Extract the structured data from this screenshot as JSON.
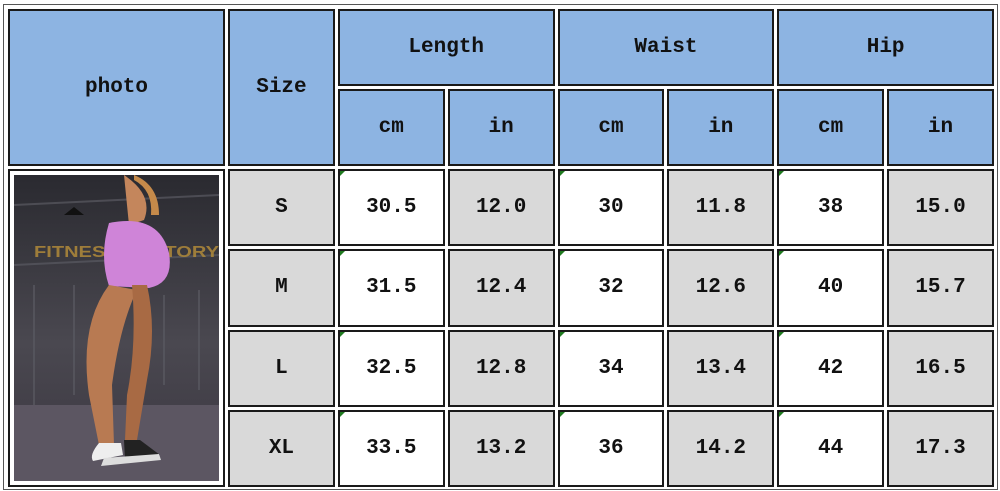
{
  "headers": {
    "photo": "photo",
    "size": "Size",
    "groups": [
      "Length",
      "Waist",
      "Hip"
    ],
    "units": [
      "cm",
      "in",
      "cm",
      "in",
      "cm",
      "in"
    ]
  },
  "rows": [
    {
      "size": "S",
      "values": [
        "30.5",
        "12.0",
        "30",
        "11.8",
        "38",
        "15.0"
      ]
    },
    {
      "size": "M",
      "values": [
        "31.5",
        "12.4",
        "32",
        "12.6",
        "40",
        "15.7"
      ]
    },
    {
      "size": "L",
      "values": [
        "32.5",
        "12.8",
        "34",
        "13.4",
        "42",
        "16.5"
      ]
    },
    {
      "size": "XL",
      "values": [
        "33.5",
        "13.2",
        "36",
        "14.2",
        "44",
        "17.3"
      ]
    }
  ],
  "photo": {
    "sign_text": "FITNESS FACTORY"
  },
  "colors": {
    "header": "#8db4e2",
    "grey_cell": "#d9d9d9",
    "white_cell": "#ffffff"
  }
}
